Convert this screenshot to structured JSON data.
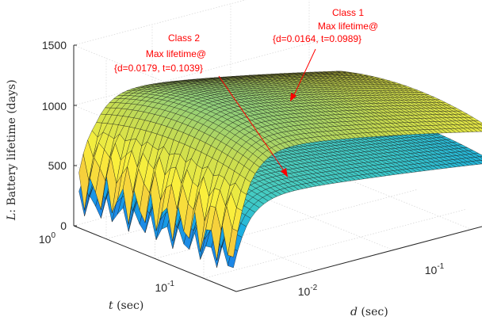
{
  "chart_data": {
    "type": "surface",
    "zlabel_var": "L",
    "zlabel_text": ": Battery lifetime (days)",
    "xlabel_var": "d",
    "xlabel_text": " (sec)",
    "ylabel_var": "t",
    "ylabel_text": " (sec)",
    "zlim": [
      0,
      1500
    ],
    "zticks": [
      "0",
      "500",
      "1000",
      "1500"
    ],
    "d_axis": {
      "scale": "log",
      "ticks": [
        {
          "base": "10",
          "exp": "-2"
        },
        {
          "base": "10",
          "exp": "-1"
        }
      ]
    },
    "t_axis": {
      "scale": "log",
      "ticks": [
        {
          "base": "10",
          "exp": "0"
        },
        {
          "base": "10",
          "exp": "-1"
        }
      ]
    },
    "grid": true,
    "series": [
      {
        "name": "Class 1",
        "max_lifetime_days": 1250,
        "d_at_max": 0.0164,
        "t_at_max": 0.0989,
        "colormap": "parula-yellow"
      },
      {
        "name": "Class 2",
        "max_lifetime_days": 800,
        "d_at_max": 0.0179,
        "t_at_max": 0.1039,
        "colormap": "parula-blue"
      }
    ],
    "annotations": [
      {
        "lines": [
          "Class 1",
          "Max lifetime@",
          "{d=0.0164, t=0.0989}"
        ]
      },
      {
        "lines": [
          "Class 2",
          "Max lifetime@",
          "{d=0.0179, t=0.1039}"
        ]
      }
    ],
    "colors": {
      "annotation": "#ff0000",
      "grid": "#d9d9d9",
      "axis": "#262626"
    }
  }
}
